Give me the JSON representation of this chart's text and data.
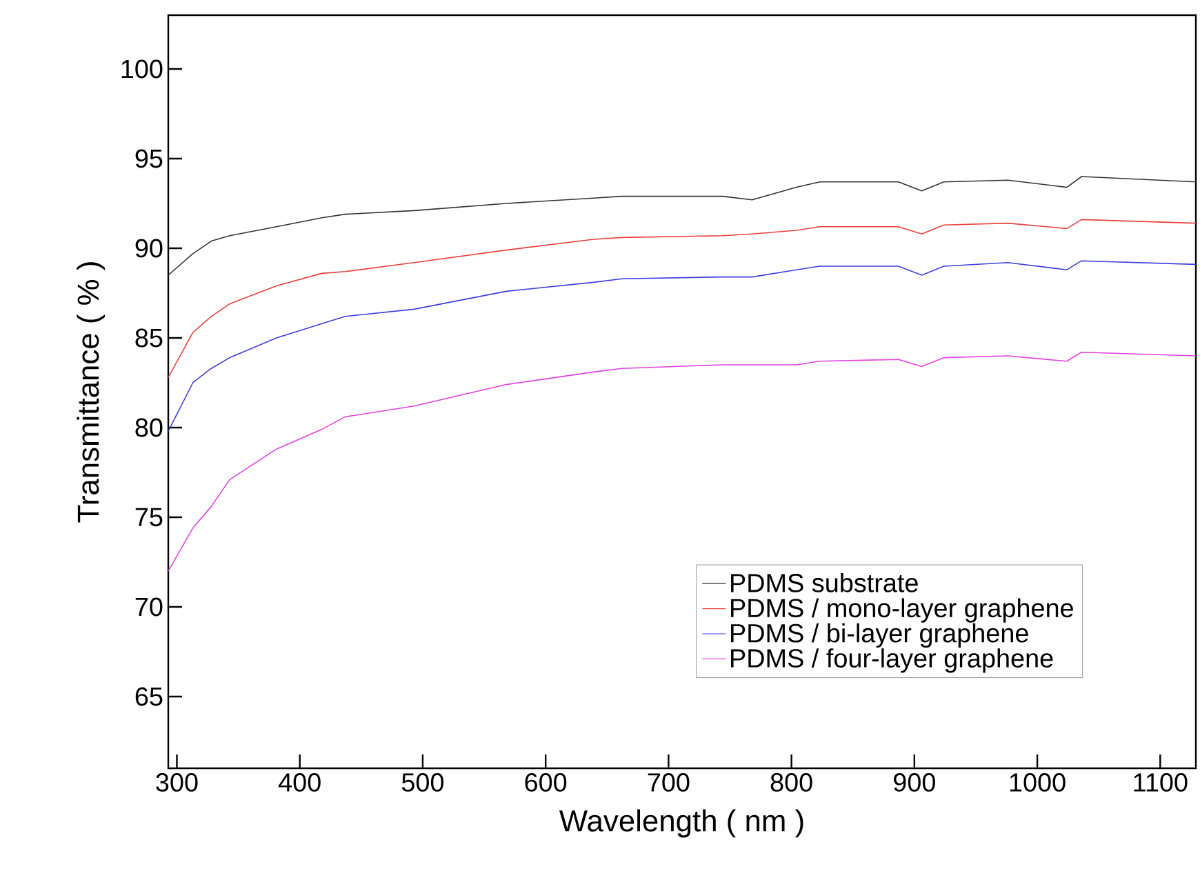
{
  "chart_data": {
    "type": "line",
    "xlabel": "Wavelength ( nm )",
    "ylabel": "Transmittance ( % )",
    "x": [
      293,
      313,
      328,
      343,
      381,
      418,
      437,
      493,
      568,
      639,
      662,
      744,
      768,
      804,
      823,
      887,
      906,
      924,
      976,
      1024,
      1036,
      1129
    ],
    "series": [
      {
        "name": "PDMS substrate",
        "color": "#333333",
        "values": [
          88.5,
          89.7,
          90.4,
          90.7,
          91.2,
          91.7,
          91.9,
          92.1,
          92.5,
          92.8,
          92.9,
          92.9,
          92.7,
          93.4,
          93.7,
          93.7,
          93.2,
          93.7,
          93.8,
          93.4,
          94.0,
          93.7
        ]
      },
      {
        "name": "PDMS / mono-layer graphene",
        "color": "#e8403c",
        "values": [
          82.8,
          85.3,
          86.2,
          86.9,
          87.9,
          88.6,
          88.7,
          89.2,
          89.9,
          90.5,
          90.6,
          90.7,
          90.8,
          91.0,
          91.2,
          91.2,
          90.8,
          91.3,
          91.4,
          91.1,
          91.6,
          91.4
        ]
      },
      {
        "name": "PDMS / bi-layer graphene",
        "color": "#3c3ce0",
        "values": [
          79.8,
          82.5,
          83.3,
          83.9,
          85.0,
          85.8,
          86.2,
          86.6,
          87.6,
          88.1,
          88.3,
          88.4,
          88.4,
          88.8,
          89.0,
          89.0,
          88.5,
          89.0,
          89.2,
          88.8,
          89.3,
          89.1
        ]
      },
      {
        "name": "PDMS / four-layer graphene",
        "color": "#e040e0",
        "values": [
          72.0,
          74.4,
          75.6,
          77.1,
          78.8,
          79.9,
          80.6,
          81.2,
          82.4,
          83.1,
          83.3,
          83.5,
          83.5,
          83.5,
          83.7,
          83.8,
          83.4,
          83.9,
          84.0,
          83.7,
          84.2,
          84.0
        ]
      }
    ],
    "xlim": [
      293,
      1129
    ],
    "ylim": [
      61,
      103
    ],
    "xticks": [
      300,
      400,
      500,
      600,
      700,
      800,
      900,
      1000,
      1100
    ],
    "yticks": [
      65,
      70,
      75,
      80,
      85,
      90,
      95,
      100
    ],
    "grid": false,
    "legend": "bottom right",
    "marker": "none",
    "line_style": "solid"
  }
}
